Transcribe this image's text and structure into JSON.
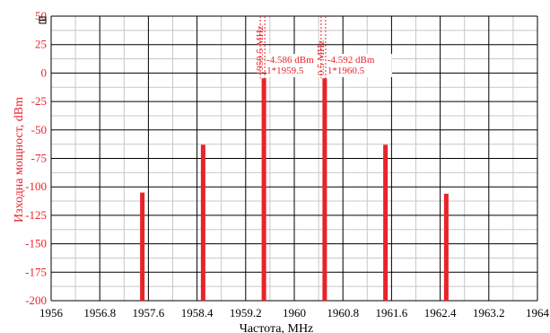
{
  "colors": {
    "series": "#e8232a",
    "axis_text_y": "#e8232a",
    "axis_text_x": "#000000",
    "grid_major": "#000000",
    "grid_minor": "#c8c8c8",
    "background": "#ffffff"
  },
  "chart_data": {
    "type": "bar",
    "xlabel": "Частота, MHz",
    "ylabel": "Изходна мощност, dBm",
    "xlim": [
      1956,
      1964
    ],
    "ylim": [
      -200,
      50
    ],
    "x_ticks": [
      "1956",
      "1956.8",
      "1957.6",
      "1958.4",
      "1959.2",
      "1960",
      "1960.8",
      "1961.6",
      "1962.4",
      "1963.2",
      "1964"
    ],
    "y_ticks": [
      "50",
      "25",
      "0",
      "-25",
      "-50",
      "-75",
      "-100",
      "-125",
      "-150",
      "-175",
      "-200"
    ],
    "grid": true,
    "series": [
      {
        "x": [
          1957.5,
          1958.5,
          1959.5,
          1960.5,
          1961.5,
          1962.5
        ],
        "values": [
          -105,
          -63,
          -4.586,
          -4.592,
          -63,
          -106
        ]
      }
    ],
    "markers": [
      {
        "x": 1959.5,
        "y": -4.586,
        "freq_label": "1959.5 MHz",
        "value_label": "-4.586 dBm",
        "id_label": "1*1959.5"
      },
      {
        "x": 1960.5,
        "y": -4.592,
        "freq_label": "0.5 MHz",
        "value_label": "-4.592 dBm",
        "id_label": "1*1960.5"
      }
    ]
  }
}
